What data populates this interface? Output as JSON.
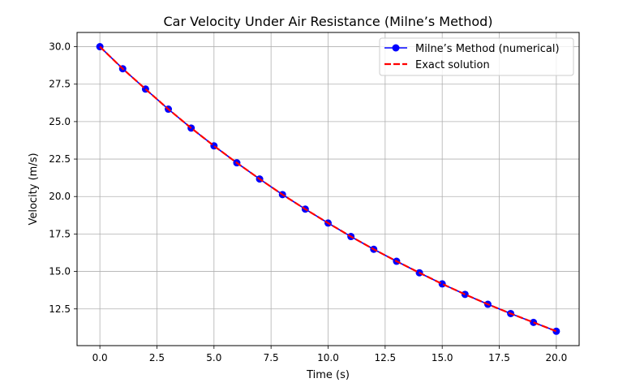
{
  "chart_data": {
    "type": "line",
    "title": "Car Velocity Under Air Resistance (Milne’s Method)",
    "xlabel": "Time (s)",
    "ylabel": "Velocity (m/s)",
    "xlim": [
      -1.0,
      21.0
    ],
    "ylim": [
      10.05,
      30.95
    ],
    "xticks": [
      0.0,
      2.5,
      5.0,
      7.5,
      10.0,
      12.5,
      15.0,
      17.5,
      20.0
    ],
    "xtick_labels": [
      "0.0",
      "2.5",
      "5.0",
      "7.5",
      "10.0",
      "12.5",
      "15.0",
      "17.5",
      "20.0"
    ],
    "yticks": [
      12.5,
      15.0,
      17.5,
      20.0,
      22.5,
      25.0,
      27.5,
      30.0
    ],
    "ytick_labels": [
      "12.5",
      "15.0",
      "17.5",
      "20.0",
      "22.5",
      "25.0",
      "27.5",
      "30.0"
    ],
    "grid": true,
    "legend_position": "top-right",
    "series": [
      {
        "name": "Milne’s Method (numerical)",
        "style": "solid-line-circle-markers",
        "color": "#0000ff",
        "x": [
          0,
          1,
          2,
          3,
          4,
          5,
          6,
          7,
          8,
          9,
          10,
          11,
          12,
          13,
          14,
          15,
          16,
          17,
          18,
          19,
          20
        ],
        "y": [
          30.0,
          28.53,
          27.17,
          25.83,
          24.57,
          23.38,
          22.25,
          21.17,
          20.13,
          19.16,
          18.23,
          17.33,
          16.48,
          15.68,
          14.91,
          14.17,
          13.47,
          12.81,
          12.19,
          11.6,
          11.01
        ]
      },
      {
        "name": "Exact solution",
        "style": "dashed-line",
        "color": "#ff0000",
        "x": [
          0,
          1,
          2,
          3,
          4,
          5,
          6,
          7,
          8,
          9,
          10,
          11,
          12,
          13,
          14,
          15,
          16,
          17,
          18,
          19,
          20
        ],
        "y": [
          30.0,
          28.53,
          27.17,
          25.83,
          24.57,
          23.38,
          22.25,
          21.17,
          20.13,
          19.16,
          18.23,
          17.33,
          16.48,
          15.68,
          14.91,
          14.17,
          13.47,
          12.81,
          12.19,
          11.6,
          11.01
        ]
      }
    ]
  }
}
